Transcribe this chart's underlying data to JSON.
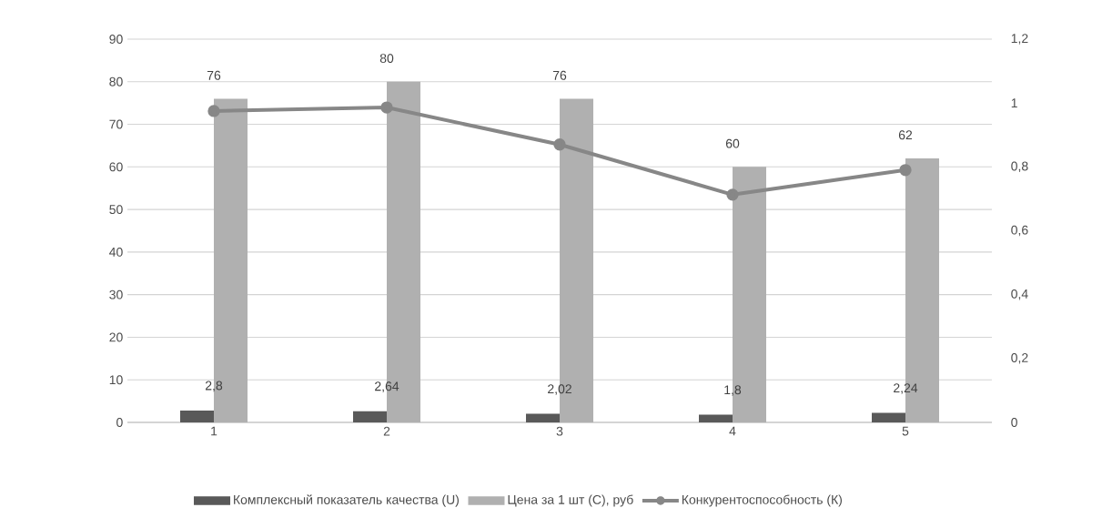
{
  "chart_data": {
    "type": "bar",
    "categories": [
      "1",
      "2",
      "3",
      "4",
      "5"
    ],
    "series": [
      {
        "name": "Комплексный показатель качества (U)",
        "color": "#595959",
        "values": [
          2.8,
          2.64,
          2.02,
          1.8,
          2.24
        ],
        "value_labels": [
          "2,8",
          "2,64",
          "2,02",
          "1,8",
          "2,24"
        ]
      },
      {
        "name": "Цена за 1 шт (С), руб",
        "color": "#b0b0b0",
        "values": [
          76,
          80,
          76,
          60,
          62
        ],
        "value_labels": [
          "76",
          "80",
          "76",
          "60",
          "62"
        ]
      },
      {
        "name": "Конкурентоспособность (К)",
        "type": "line",
        "axis": "y2",
        "marker": "circle",
        "color": "#878787",
        "values": [
          0.975,
          0.986,
          0.87,
          0.713,
          0.79
        ]
      }
    ],
    "ylim": [
      0,
      90
    ],
    "yticks": [
      0,
      10,
      20,
      30,
      40,
      50,
      60,
      70,
      80,
      90
    ],
    "y2lim": [
      0,
      1.2
    ],
    "y2ticks": [
      0,
      {
        "value": 0.2,
        "label": "0,2"
      },
      {
        "value": 0.4,
        "label": "0,4"
      },
      {
        "value": 0.6,
        "label": "0,6"
      },
      {
        "value": 0.8,
        "label": "0,8"
      },
      1,
      {
        "value": 1.2,
        "label": "1,2"
      }
    ],
    "grid": "y",
    "legend": "bottom"
  }
}
